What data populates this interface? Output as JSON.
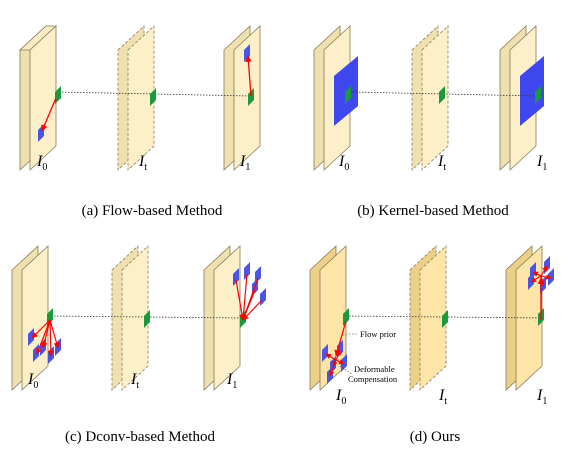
{
  "captions": {
    "a": "(a) Flow-based Method",
    "b": "(b) Kernel-based Method",
    "c": "(c) Dconv-based Method",
    "d": "(d) Ours"
  },
  "frame_labels": {
    "base": "I",
    "i0_sub": "0",
    "it_sub": "t",
    "i1_sub": "1"
  },
  "annotations": {
    "flow_prior": "Flow prior",
    "deformable_line1": "Deformable",
    "deformable_line2": "Compensation"
  },
  "colors": {
    "frame_light": "#fdf0c8",
    "frame_side_light": "#efe0b0",
    "frame_dark": "#fce5a6",
    "frame_side_dark": "#ecd08a",
    "frame_edge": "#8a7a55",
    "pixel_target": "#1a9a3a",
    "pixel_source": "#4a55e8",
    "kernel_block": "#3f47ee",
    "arrow": "#ff0000",
    "dotted_line": "#333333"
  }
}
